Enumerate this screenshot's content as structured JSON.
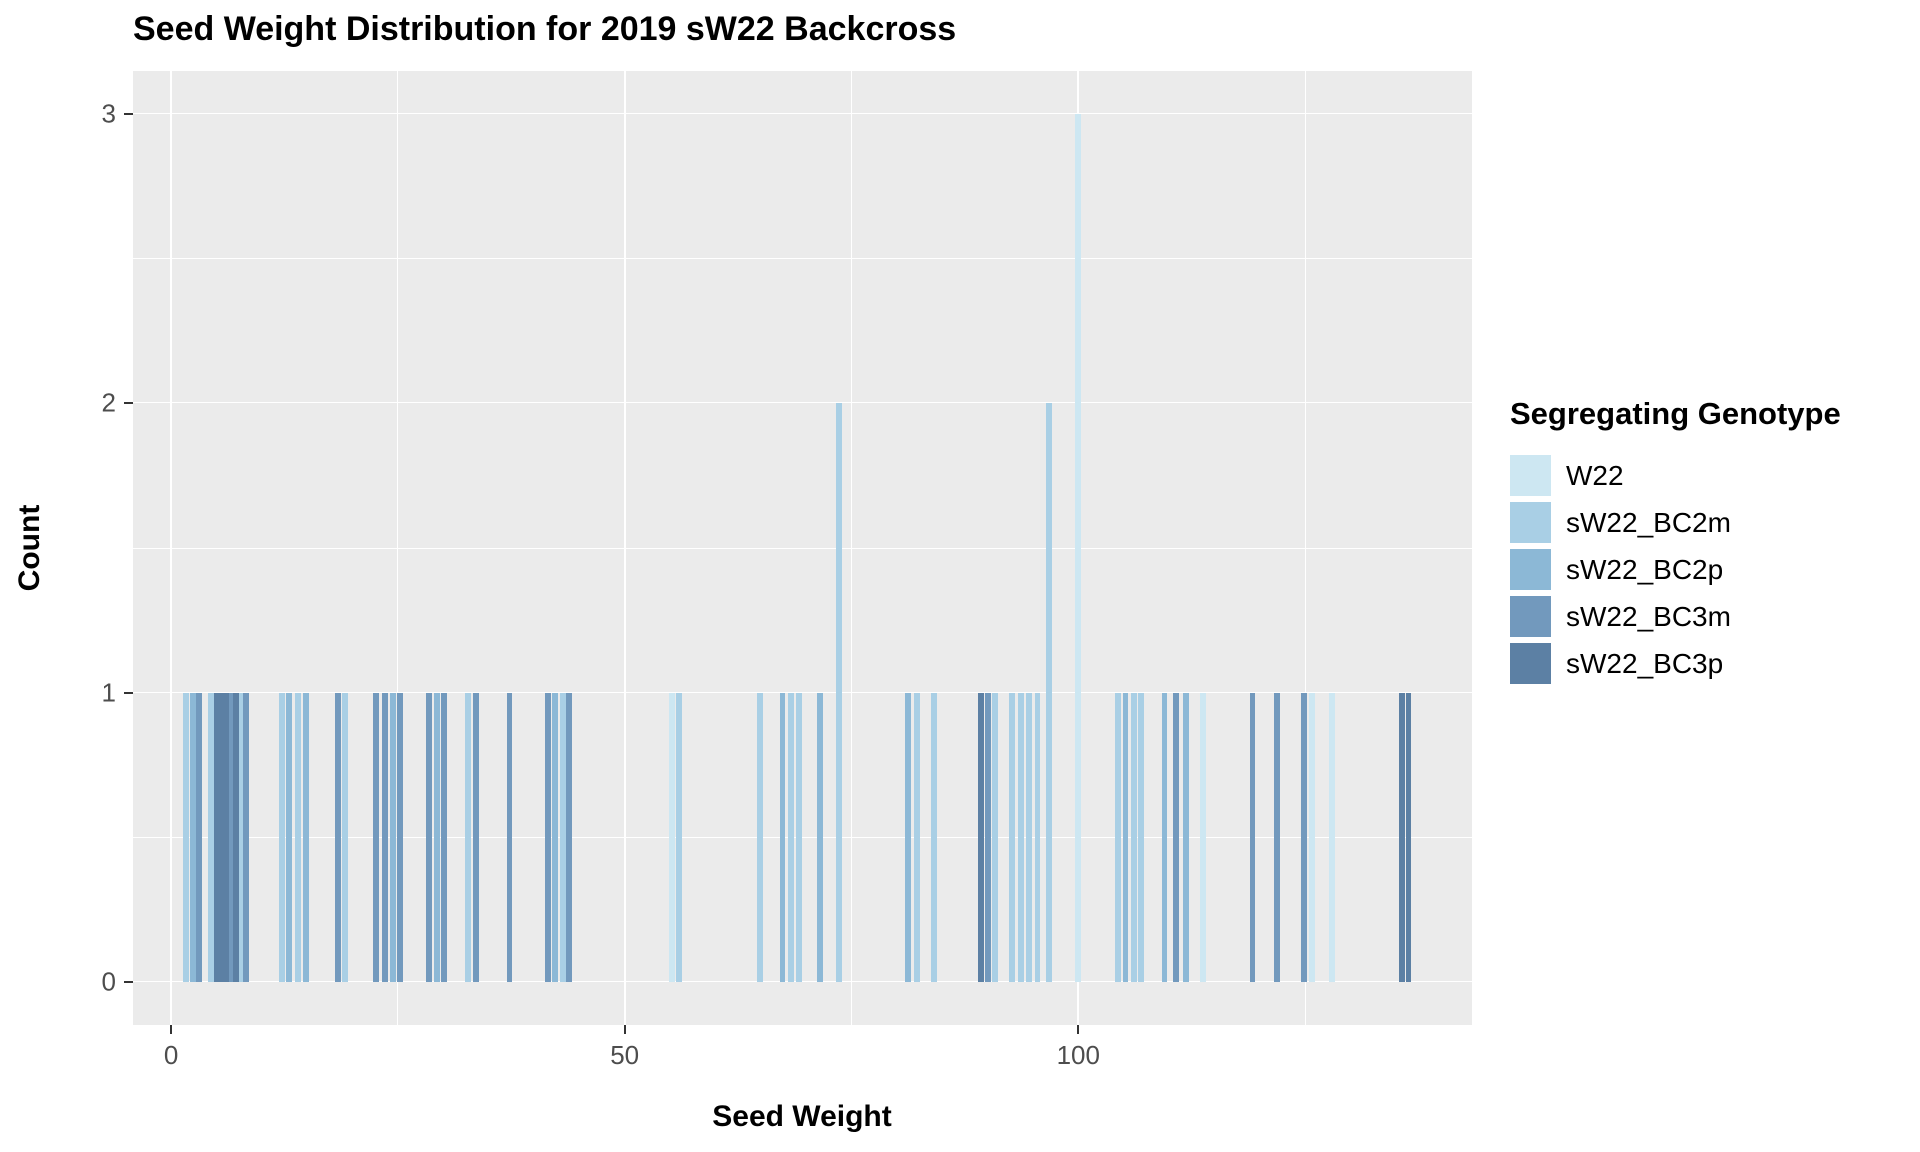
{
  "chart_data": {
    "type": "bar",
    "title": "Seed Weight Distribution for 2019 sW22 Backcross",
    "xlabel": "Seed Weight",
    "ylabel": "Count",
    "legend_title": "Segregating Genotype",
    "legend_position": "right",
    "grid": true,
    "panel_background": "#EBEBEB",
    "grid_color": "#FFFFFF",
    "xlim": [
      -4.2,
      143.4
    ],
    "ylim": [
      -0.15,
      3.15
    ],
    "x_ticks": [
      0,
      50,
      100
    ],
    "y_ticks": [
      0,
      1,
      2,
      3
    ],
    "x_minor_ticks": [
      25,
      75,
      125
    ],
    "y_minor_ticks": [
      0.5,
      1.5,
      2.5
    ],
    "bar_width": 0.65,
    "series": [
      {
        "name": "W22",
        "color": "#CDE7F2"
      },
      {
        "name": "sW22_BC2m",
        "color": "#A9CFE5"
      },
      {
        "name": "sW22_BC2p",
        "color": "#8CB8D6"
      },
      {
        "name": "sW22_BC3m",
        "color": "#7299BD"
      },
      {
        "name": "sW22_BC3p",
        "color": "#5C80A4"
      }
    ],
    "colors": {
      "W22": "#CDE7F2",
      "sW22_BC2m": "#A9CFE5",
      "sW22_BC2p": "#8CB8D6",
      "sW22_BC3m": "#7299BD",
      "sW22_BC3p": "#5C80A4"
    },
    "bars": [
      {
        "x": 1.6,
        "count": 1,
        "genotype": "sW22_BC2m"
      },
      {
        "x": 2.4,
        "count": 1,
        "genotype": "sW22_BC2p"
      },
      {
        "x": 3.1,
        "count": 1,
        "genotype": "sW22_BC3m"
      },
      {
        "x": 4.4,
        "count": 1,
        "genotype": "sW22_BC2m"
      },
      {
        "x": 5.1,
        "count": 1,
        "genotype": "sW22_BC3p"
      },
      {
        "x": 5.6,
        "count": 1,
        "genotype": "sW22_BC3p"
      },
      {
        "x": 6.1,
        "count": 1,
        "genotype": "sW22_BC3p"
      },
      {
        "x": 6.7,
        "count": 1,
        "genotype": "sW22_BC3m"
      },
      {
        "x": 7.2,
        "count": 1,
        "genotype": "sW22_BC3p"
      },
      {
        "x": 7.8,
        "count": 1,
        "genotype": "sW22_BC2m"
      },
      {
        "x": 8.3,
        "count": 1,
        "genotype": "sW22_BC3m"
      },
      {
        "x": 12.2,
        "count": 1,
        "genotype": "sW22_BC2m"
      },
      {
        "x": 13.0,
        "count": 1,
        "genotype": "sW22_BC2p"
      },
      {
        "x": 14.0,
        "count": 1,
        "genotype": "sW22_BC2m"
      },
      {
        "x": 14.9,
        "count": 1,
        "genotype": "sW22_BC2p"
      },
      {
        "x": 18.4,
        "count": 1,
        "genotype": "sW22_BC3m"
      },
      {
        "x": 19.2,
        "count": 1,
        "genotype": "sW22_BC2m"
      },
      {
        "x": 22.6,
        "count": 1,
        "genotype": "sW22_BC3m"
      },
      {
        "x": 23.6,
        "count": 1,
        "genotype": "sW22_BC3m"
      },
      {
        "x": 24.5,
        "count": 1,
        "genotype": "sW22_BC2p"
      },
      {
        "x": 25.2,
        "count": 1,
        "genotype": "sW22_BC3m"
      },
      {
        "x": 28.4,
        "count": 1,
        "genotype": "sW22_BC3m"
      },
      {
        "x": 29.3,
        "count": 1,
        "genotype": "sW22_BC2p"
      },
      {
        "x": 30.1,
        "count": 1,
        "genotype": "sW22_BC3m"
      },
      {
        "x": 32.7,
        "count": 1,
        "genotype": "sW22_BC2m"
      },
      {
        "x": 33.6,
        "count": 1,
        "genotype": "sW22_BC3m"
      },
      {
        "x": 37.3,
        "count": 1,
        "genotype": "sW22_BC3m"
      },
      {
        "x": 41.5,
        "count": 1,
        "genotype": "sW22_BC3m"
      },
      {
        "x": 42.3,
        "count": 1,
        "genotype": "sW22_BC2p"
      },
      {
        "x": 43.2,
        "count": 1,
        "genotype": "sW22_BC2m"
      },
      {
        "x": 43.9,
        "count": 1,
        "genotype": "sW22_BC3m"
      },
      {
        "x": 55.2,
        "count": 1,
        "genotype": "W22"
      },
      {
        "x": 56.0,
        "count": 1,
        "genotype": "sW22_BC2m"
      },
      {
        "x": 64.9,
        "count": 1,
        "genotype": "sW22_BC2m"
      },
      {
        "x": 67.4,
        "count": 1,
        "genotype": "sW22_BC2p"
      },
      {
        "x": 68.3,
        "count": 1,
        "genotype": "sW22_BC2m"
      },
      {
        "x": 69.2,
        "count": 1,
        "genotype": "sW22_BC2m"
      },
      {
        "x": 71.5,
        "count": 1,
        "genotype": "sW22_BC2p"
      },
      {
        "x": 73.6,
        "count": 2,
        "genotype": "sW22_BC2m"
      },
      {
        "x": 81.2,
        "count": 1,
        "genotype": "sW22_BC2p"
      },
      {
        "x": 82.2,
        "count": 1,
        "genotype": "sW22_BC2m"
      },
      {
        "x": 84.1,
        "count": 1,
        "genotype": "sW22_BC2m"
      },
      {
        "x": 89.3,
        "count": 1,
        "genotype": "sW22_BC3p"
      },
      {
        "x": 90.0,
        "count": 1,
        "genotype": "sW22_BC3m"
      },
      {
        "x": 90.8,
        "count": 1,
        "genotype": "sW22_BC2m"
      },
      {
        "x": 92.7,
        "count": 1,
        "genotype": "sW22_BC2m"
      },
      {
        "x": 93.7,
        "count": 1,
        "genotype": "sW22_BC2m"
      },
      {
        "x": 94.6,
        "count": 1,
        "genotype": "sW22_BC2m"
      },
      {
        "x": 95.5,
        "count": 1,
        "genotype": "sW22_BC2m"
      },
      {
        "x": 96.8,
        "count": 2,
        "genotype": "sW22_BC2m"
      },
      {
        "x": 100.0,
        "count": 3,
        "genotype": "W22"
      },
      {
        "x": 104.4,
        "count": 1,
        "genotype": "sW22_BC2m"
      },
      {
        "x": 105.2,
        "count": 1,
        "genotype": "sW22_BC2p"
      },
      {
        "x": 106.1,
        "count": 1,
        "genotype": "sW22_BC2m"
      },
      {
        "x": 106.9,
        "count": 1,
        "genotype": "sW22_BC2m"
      },
      {
        "x": 109.5,
        "count": 1,
        "genotype": "sW22_BC2p"
      },
      {
        "x": 110.8,
        "count": 1,
        "genotype": "sW22_BC3m"
      },
      {
        "x": 111.9,
        "count": 1,
        "genotype": "sW22_BC2p"
      },
      {
        "x": 113.7,
        "count": 1,
        "genotype": "W22"
      },
      {
        "x": 119.2,
        "count": 1,
        "genotype": "sW22_BC3m"
      },
      {
        "x": 121.9,
        "count": 1,
        "genotype": "sW22_BC3m"
      },
      {
        "x": 124.9,
        "count": 1,
        "genotype": "sW22_BC3m"
      },
      {
        "x": 125.8,
        "count": 1,
        "genotype": "W22"
      },
      {
        "x": 128.0,
        "count": 1,
        "genotype": "W22"
      },
      {
        "x": 135.7,
        "count": 1,
        "genotype": "sW22_BC3p"
      },
      {
        "x": 136.4,
        "count": 1,
        "genotype": "sW22_BC3p"
      }
    ]
  }
}
